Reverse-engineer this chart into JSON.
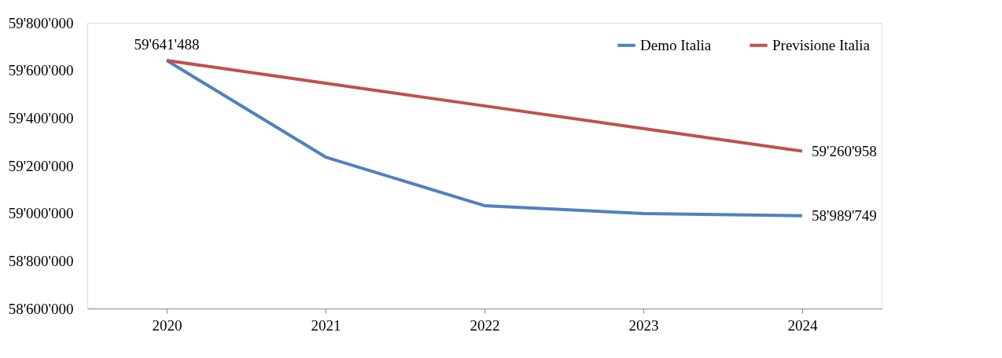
{
  "chart_data": {
    "type": "line",
    "categories": [
      "2020",
      "2021",
      "2022",
      "2023",
      "2024"
    ],
    "series": [
      {
        "name": "Demo Italia",
        "color": "#4f81bd",
        "values": [
          59641488,
          59236000,
          59032000,
          58999000,
          58989749
        ],
        "value_labels": [
          "59'641'488",
          null,
          null,
          null,
          "58'989'749"
        ]
      },
      {
        "name": "Previsione Italia",
        "color": "#c0504d",
        "values": [
          59641488,
          59546000,
          59451000,
          59356000,
          59260958
        ],
        "value_labels": [
          null,
          null,
          null,
          null,
          "59'260'958"
        ]
      }
    ],
    "ylim": [
      58600000,
      59800000
    ],
    "yticks": [
      {
        "value": 58600000,
        "label": "58'600'000"
      },
      {
        "value": 58800000,
        "label": "58'800'000"
      },
      {
        "value": 59000000,
        "label": "59'000'000"
      },
      {
        "value": 59200000,
        "label": "59'200'000"
      },
      {
        "value": 59400000,
        "label": "59'400'000"
      },
      {
        "value": 59600000,
        "label": "59'600'000"
      },
      {
        "value": 59800000,
        "label": "59'800'000"
      }
    ],
    "grid": false,
    "legend": "top right",
    "marker": "none",
    "line_style": "solid"
  }
}
